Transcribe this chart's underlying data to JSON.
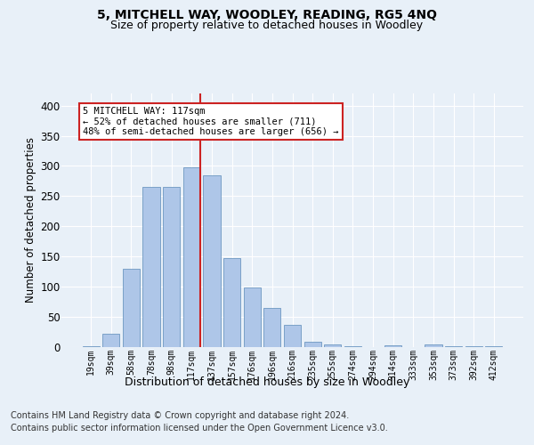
{
  "title": "5, MITCHELL WAY, WOODLEY, READING, RG5 4NQ",
  "subtitle": "Size of property relative to detached houses in Woodley",
  "xlabel": "Distribution of detached houses by size in Woodley",
  "ylabel": "Number of detached properties",
  "categories": [
    "19sqm",
    "39sqm",
    "58sqm",
    "78sqm",
    "98sqm",
    "117sqm",
    "137sqm",
    "157sqm",
    "176sqm",
    "196sqm",
    "216sqm",
    "235sqm",
    "255sqm",
    "274sqm",
    "294sqm",
    "314sqm",
    "333sqm",
    "353sqm",
    "373sqm",
    "392sqm",
    "412sqm"
  ],
  "values": [
    2,
    22,
    130,
    265,
    265,
    298,
    285,
    147,
    99,
    65,
    37,
    9,
    5,
    2,
    0,
    3,
    0,
    5,
    2,
    1,
    2
  ],
  "bar_color": "#aec6e8",
  "bar_edge_color": "#5a8ab8",
  "highlight_index": 5,
  "highlight_color": "#cc2222",
  "annotation_line1": "5 MITCHELL WAY: 117sqm",
  "annotation_line2": "← 52% of detached houses are smaller (711)",
  "annotation_line3": "48% of semi-detached houses are larger (656) →",
  "annotation_box_color": "#ffffff",
  "annotation_box_edge": "#cc2222",
  "ylim": [
    0,
    420
  ],
  "yticks": [
    0,
    50,
    100,
    150,
    200,
    250,
    300,
    350,
    400
  ],
  "footer_line1": "Contains HM Land Registry data © Crown copyright and database right 2024.",
  "footer_line2": "Contains public sector information licensed under the Open Government Licence v3.0.",
  "background_color": "#e8f0f8",
  "grid_color": "#ffffff",
  "title_fontsize": 10,
  "subtitle_fontsize": 9,
  "ylabel_fontsize": 8.5,
  "tick_fontsize": 7,
  "annotation_fontsize": 7.5,
  "xlabel_fontsize": 9,
  "footer_fontsize": 7
}
